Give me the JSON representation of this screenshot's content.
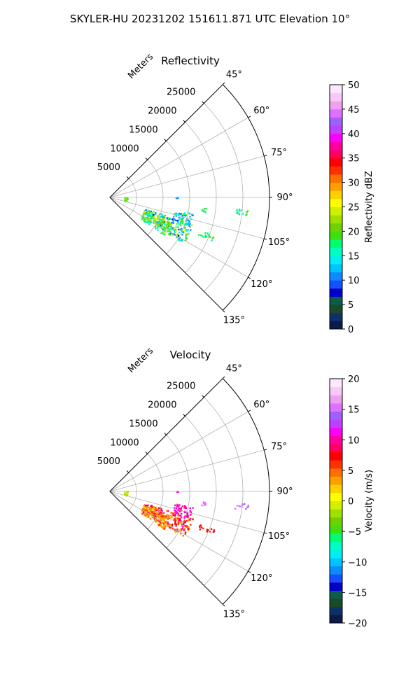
{
  "title": "SKYLER-HU  20231202  151611.871 UTC Elevation 10°",
  "chart_data": [
    {
      "type": "heatmap",
      "subtype": "polar-sector-ppi",
      "title": "Reflectivity",
      "range_axis_label": "Meters",
      "range_ticks": [
        5000,
        10000,
        15000,
        20000,
        25000
      ],
      "range_tick_labels": [
        "5000",
        "10000",
        "15000",
        "20000",
        "25000"
      ],
      "range_max": 30000,
      "azimuth_range": [
        45,
        135
      ],
      "azimuth_ticks": [
        45,
        60,
        75,
        90,
        105,
        120,
        135
      ],
      "azimuth_tick_labels": [
        "45°",
        "60°",
        "75°",
        "90°",
        "105°",
        "120°",
        "135°"
      ],
      "grid": true,
      "colorbar": {
        "label": "Reflectivity dBZ",
        "min": 0,
        "max": 50,
        "ticks": [
          0,
          5,
          10,
          15,
          20,
          25,
          30,
          35,
          40,
          45,
          50
        ],
        "tick_labels": [
          "0",
          "5",
          "10",
          "15",
          "20",
          "25",
          "30",
          "35",
          "40",
          "45",
          "50"
        ],
        "palette": [
          "#0b1a4a",
          "#10306a",
          "#1a4a2a",
          "#0c5c4a",
          "#0000c8",
          "#1450ff",
          "#0a8cff",
          "#00c4ff",
          "#00f0f0",
          "#00ffc0",
          "#00ff70",
          "#40e010",
          "#70d000",
          "#a0e000",
          "#d0f000",
          "#ffff00",
          "#ffd000",
          "#ffa000",
          "#ff7000",
          "#ff3000",
          "#ff0000",
          "#ff0060",
          "#ff00a0",
          "#ff00ff",
          "#c040ff",
          "#a060ff",
          "#e070ff",
          "#f0a0f0",
          "#f8c8f8",
          "#fde8fd"
        ]
      },
      "echoes": [
        {
          "az_min": 91.5,
          "az_max": 105,
          "r_min": 2800,
          "r_max": 3400,
          "value_min": 18,
          "value_max": 22
        },
        {
          "az_min": 90.3,
          "az_max": 90.7,
          "r_min": 12500,
          "r_max": 12900,
          "value_min": 10,
          "value_max": 12
        },
        {
          "az_min": 96.5,
          "az_max": 99,
          "r_min": 17500,
          "r_max": 18200,
          "value_min": 16,
          "value_max": 19
        },
        {
          "az_min": 95,
          "az_max": 98,
          "r_min": 23500,
          "r_max": 26200,
          "value_min": 14,
          "value_max": 20
        },
        {
          "az_min": 108,
          "az_max": 122,
          "r_min": 7000,
          "r_max": 16500,
          "value_min": 8,
          "value_max": 26
        },
        {
          "az_min": 112,
          "az_max": 125,
          "r_min": 7000,
          "r_max": 12500,
          "value_min": 14,
          "value_max": 24
        },
        {
          "az_min": 101,
          "az_max": 110,
          "r_min": 12500,
          "r_max": 16000,
          "value_min": 10,
          "value_max": 20
        },
        {
          "az_min": 110,
          "az_max": 113,
          "r_min": 18000,
          "r_max": 21000,
          "value_min": 16,
          "value_max": 20
        }
      ]
    },
    {
      "type": "heatmap",
      "subtype": "polar-sector-ppi",
      "title": "Velocity",
      "range_axis_label": "Meters",
      "range_ticks": [
        5000,
        10000,
        15000,
        20000,
        25000
      ],
      "range_tick_labels": [
        "5000",
        "10000",
        "15000",
        "20000",
        "25000"
      ],
      "range_max": 30000,
      "azimuth_range": [
        45,
        135
      ],
      "azimuth_ticks": [
        45,
        60,
        75,
        90,
        105,
        120,
        135
      ],
      "azimuth_tick_labels": [
        "45°",
        "60°",
        "75°",
        "90°",
        "105°",
        "120°",
        "135°"
      ],
      "grid": true,
      "colorbar": {
        "label": "Velocity (m/s)",
        "min": -20,
        "max": 20,
        "ticks": [
          -20,
          -15,
          -10,
          -5,
          0,
          5,
          10,
          15,
          20
        ],
        "tick_labels": [
          "−20",
          "−15",
          "−10",
          "−5",
          "0",
          "5",
          "10",
          "15",
          "20"
        ],
        "palette": [
          "#0b1a4a",
          "#10306a",
          "#1a4a2a",
          "#0c5c4a",
          "#0000c8",
          "#1450ff",
          "#0a8cff",
          "#00c4ff",
          "#00f0f0",
          "#00ffc0",
          "#00ff70",
          "#40e010",
          "#70d000",
          "#a0e000",
          "#d0f000",
          "#ffff00",
          "#ffd000",
          "#ffa000",
          "#ff7000",
          "#ff3000",
          "#ff0000",
          "#ff0060",
          "#ff00a0",
          "#ff00ff",
          "#c040ff",
          "#a060ff",
          "#e070ff",
          "#f0a0f0",
          "#f8c8f8",
          "#fde8fd"
        ]
      },
      "echoes": [
        {
          "az_min": 91.5,
          "az_max": 105,
          "r_min": 2800,
          "r_max": 3400,
          "value_min": -3,
          "value_max": -1
        },
        {
          "az_min": 90.3,
          "az_max": 90.7,
          "r_min": 12500,
          "r_max": 12900,
          "value_min": 11,
          "value_max": 12
        },
        {
          "az_min": 96.5,
          "az_max": 99,
          "r_min": 17500,
          "r_max": 18200,
          "value_min": 15,
          "value_max": 16
        },
        {
          "az_min": 95,
          "az_max": 98,
          "r_min": 23500,
          "r_max": 26200,
          "value_min": 14,
          "value_max": 17
        },
        {
          "az_min": 108,
          "az_max": 122,
          "r_min": 7000,
          "r_max": 16500,
          "value_min": 3,
          "value_max": 10
        },
        {
          "az_min": 112,
          "az_max": 125,
          "r_min": 7000,
          "r_max": 12500,
          "value_min": 2,
          "value_max": 6
        },
        {
          "az_min": 101,
          "az_max": 110,
          "r_min": 12500,
          "r_max": 16000,
          "value_min": 9,
          "value_max": 11
        },
        {
          "az_min": 110,
          "az_max": 113,
          "r_min": 18000,
          "r_max": 21000,
          "value_min": 6,
          "value_max": 8
        }
      ]
    }
  ]
}
